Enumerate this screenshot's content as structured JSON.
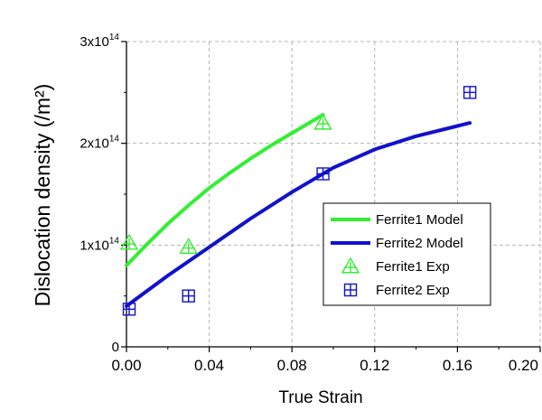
{
  "chart_data": {
    "type": "line",
    "xlabel": "True Strain",
    "ylabel": "Dislocation density (/m²)",
    "xlim": [
      0,
      0.2
    ],
    "ylim": [
      0,
      300000000000000.0
    ],
    "x_ticks": [
      "0.00",
      "0.04",
      "0.08",
      "0.12",
      "0.16",
      "0.20"
    ],
    "x_tick_values": [
      0,
      0.04,
      0.08,
      0.12,
      0.16,
      0.2
    ],
    "y_ticks": [
      {
        "value": 0,
        "base": "0",
        "exp": ""
      },
      {
        "value": 100000000000000.0,
        "base": "1x10",
        "exp": "14"
      },
      {
        "value": 200000000000000.0,
        "base": "2x10",
        "exp": "14"
      },
      {
        "value": 300000000000000.0,
        "base": "3x10",
        "exp": "14"
      }
    ],
    "grid": "dashed",
    "legend_position": "center-right",
    "series": [
      {
        "name": "Ferrite1 Model",
        "kind": "line",
        "color": "#33ee33",
        "x": [
          0.0,
          0.01,
          0.02,
          0.03,
          0.04,
          0.05,
          0.06,
          0.07,
          0.08,
          0.09,
          0.095
        ],
        "values": [
          80000000000000.0,
          101000000000000.0,
          121000000000000.0,
          139000000000000.0,
          156000000000000.0,
          171000000000000.0,
          185000000000000.0,
          198000000000000.0,
          210000000000000.0,
          222000000000000.0,
          228000000000000.0
        ]
      },
      {
        "name": "Ferrite2 Model",
        "kind": "line",
        "color": "#1111cc",
        "x": [
          0.0,
          0.02,
          0.04,
          0.06,
          0.08,
          0.1,
          0.12,
          0.14,
          0.16,
          0.166
        ],
        "values": [
          40000000000000.0,
          70000000000000.0,
          98000000000000.0,
          126000000000000.0,
          152000000000000.0,
          176000000000000.0,
          194000000000000.0,
          207000000000000.0,
          217000000000000.0,
          220000000000000.0
        ]
      },
      {
        "name": "Ferrite1 Exp",
        "kind": "scatter",
        "marker": "triangle",
        "color": "#33ee33",
        "x": [
          0.0,
          0.03,
          0.095
        ],
        "values": [
          102000000000000.0,
          98000000000000.0,
          220000000000000.0
        ]
      },
      {
        "name": "Ferrite2 Exp",
        "kind": "scatter",
        "marker": "square-plus",
        "color": "#1111cc",
        "x": [
          0.0,
          0.03,
          0.095,
          0.166
        ],
        "values": [
          37000000000000.0,
          50000000000000.0,
          170000000000000.0,
          250000000000000.0
        ]
      }
    ]
  }
}
